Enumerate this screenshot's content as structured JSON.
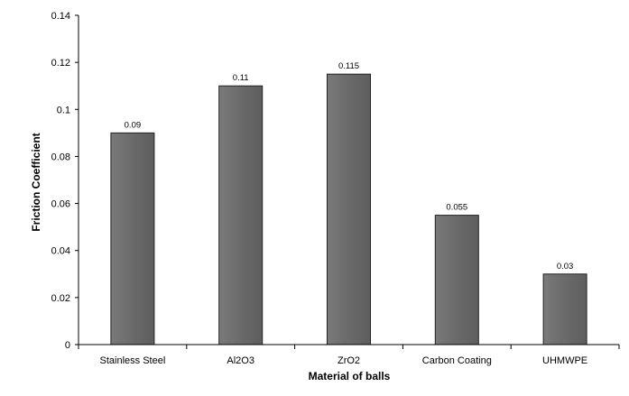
{
  "chart_data": {
    "type": "bar",
    "categories": [
      "Stainless Steel",
      "Al2O3",
      "ZrO2",
      "Carbon Coating",
      "UHMWPE"
    ],
    "values": [
      0.09,
      0.11,
      0.115,
      0.055,
      0.03
    ],
    "data_labels": [
      "0.09",
      "0.11",
      "0.115",
      "0.055",
      "0.03"
    ],
    "title": "",
    "xlabel": "Material of balls",
    "ylabel": "Friction Coefficient",
    "ylim": [
      0,
      0.14
    ],
    "yticks": [
      0,
      0.02,
      0.04,
      0.06,
      0.08,
      0.1,
      0.12,
      0.14
    ],
    "ytick_labels": [
      "0",
      "0.02",
      "0.04",
      "0.06",
      "0.08",
      "0.1",
      "0.12",
      "0.14"
    ],
    "grid": false,
    "legend": "none",
    "colors": {
      "bar_fill": "#6f6f6f",
      "bar_edge": "#222222",
      "axis": "#000000"
    }
  }
}
